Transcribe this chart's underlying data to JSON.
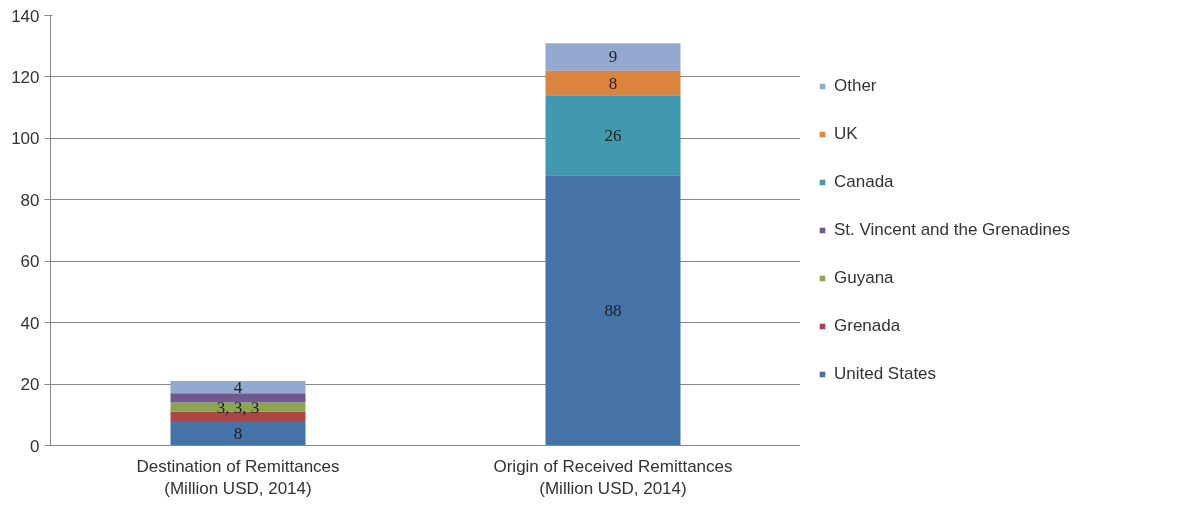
{
  "chart_data": {
    "type": "bar",
    "stacked": true,
    "categories": [
      "Destination of Remittances\n(Million USD, 2014)",
      "Origin of Received Remittances\n(Million USD, 2014)"
    ],
    "series": [
      {
        "name": "United States",
        "color": "#4572a7",
        "values": [
          8,
          88
        ],
        "value_labels": [
          "8",
          "88"
        ]
      },
      {
        "name": "Grenada",
        "color": "#aa4643",
        "values": [
          3,
          null
        ],
        "value_labels": [
          null,
          null
        ]
      },
      {
        "name": "Guyana",
        "color": "#89a54e",
        "values": [
          3,
          null
        ],
        "value_labels": [
          "3, 3, 3",
          null
        ]
      },
      {
        "name": "St. Vincent and the Grenadines",
        "color": "#71588f",
        "values": [
          3,
          null
        ],
        "value_labels": [
          null,
          null
        ]
      },
      {
        "name": "Canada",
        "color": "#4198af",
        "values": [
          null,
          26
        ],
        "value_labels": [
          null,
          "26"
        ]
      },
      {
        "name": "UK",
        "color": "#db843d",
        "values": [
          null,
          8
        ],
        "value_labels": [
          null,
          "8"
        ]
      },
      {
        "name": "Other",
        "color": "#93a9cf",
        "values": [
          4,
          9
        ],
        "value_labels": [
          "4",
          "9"
        ]
      }
    ],
    "ylim": [
      0,
      140
    ],
    "yticks": [
      0,
      20,
      40,
      60,
      80,
      100,
      120,
      140
    ],
    "grid": "y",
    "legend": "right"
  }
}
